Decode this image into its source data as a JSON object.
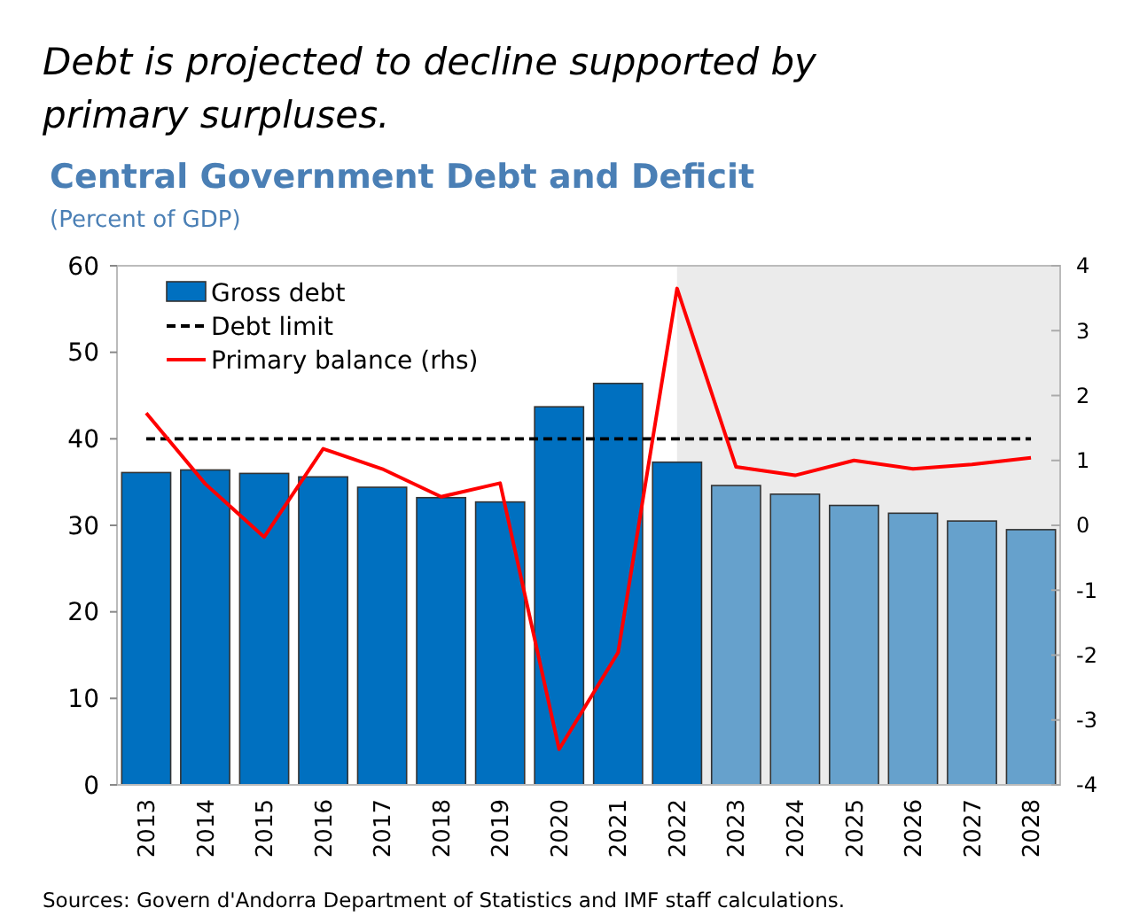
{
  "chart_data": {
    "type": "bar",
    "title": "Debt is projected to decline supported by primary surpluses.",
    "subtitle": "Central Government Debt and Deficit",
    "ylabel": "(Percent of GDP)",
    "categories": [
      "2013",
      "2014",
      "2015",
      "2016",
      "2017",
      "2018",
      "2019",
      "2020",
      "2021",
      "2022",
      "2023",
      "2024",
      "2025",
      "2026",
      "2027",
      "2028"
    ],
    "series": [
      {
        "name": "Gross debt",
        "color": "#0070c0",
        "colors": [
          "#0070c0",
          "#0070c0",
          "#0070c0",
          "#0070c0",
          "#0070c0",
          "#0070c0",
          "#0070c0",
          "#0070c0",
          "#0070c0",
          "#0070c0",
          "#66a1cc",
          "#66a1cc",
          "#66a1cc",
          "#66a1cc",
          "#66a1cc",
          "#66a1cc"
        ],
        "values": [
          36.1,
          36.4,
          36.0,
          35.6,
          34.4,
          33.2,
          32.7,
          43.7,
          46.4,
          37.3,
          34.6,
          33.6,
          32.3,
          31.4,
          30.5,
          29.5
        ]
      },
      {
        "name": "Primary balance (rhs)",
        "type": "line",
        "axis": "y2",
        "color": "#ff0000",
        "values": [
          1.73,
          0.64,
          -0.18,
          1.18,
          0.87,
          0.44,
          0.65,
          -3.45,
          -1.96,
          3.65,
          0.9,
          0.77,
          1.0,
          0.87,
          0.94,
          1.04
        ]
      }
    ],
    "ylim": [
      0,
      60
    ],
    "yticks": [
      0,
      10,
      20,
      30,
      40,
      50,
      60
    ],
    "y2lim": [
      -4,
      4
    ],
    "y2ticks": [
      -4,
      -3,
      -2,
      -1,
      0,
      1,
      2,
      3,
      4
    ],
    "ref_lines": [
      {
        "axis": "y",
        "value": 40,
        "label": "Debt limit",
        "color": "#000000",
        "line_style": "dashed"
      }
    ],
    "bands": [
      {
        "axis": "x",
        "from": "2022",
        "to": "2028",
        "color": "#ebebeb"
      }
    ],
    "legend": "top left",
    "annotations": [
      "Sources: Govern d'Andorra Department of Statistics and IMF staff calculations."
    ]
  }
}
